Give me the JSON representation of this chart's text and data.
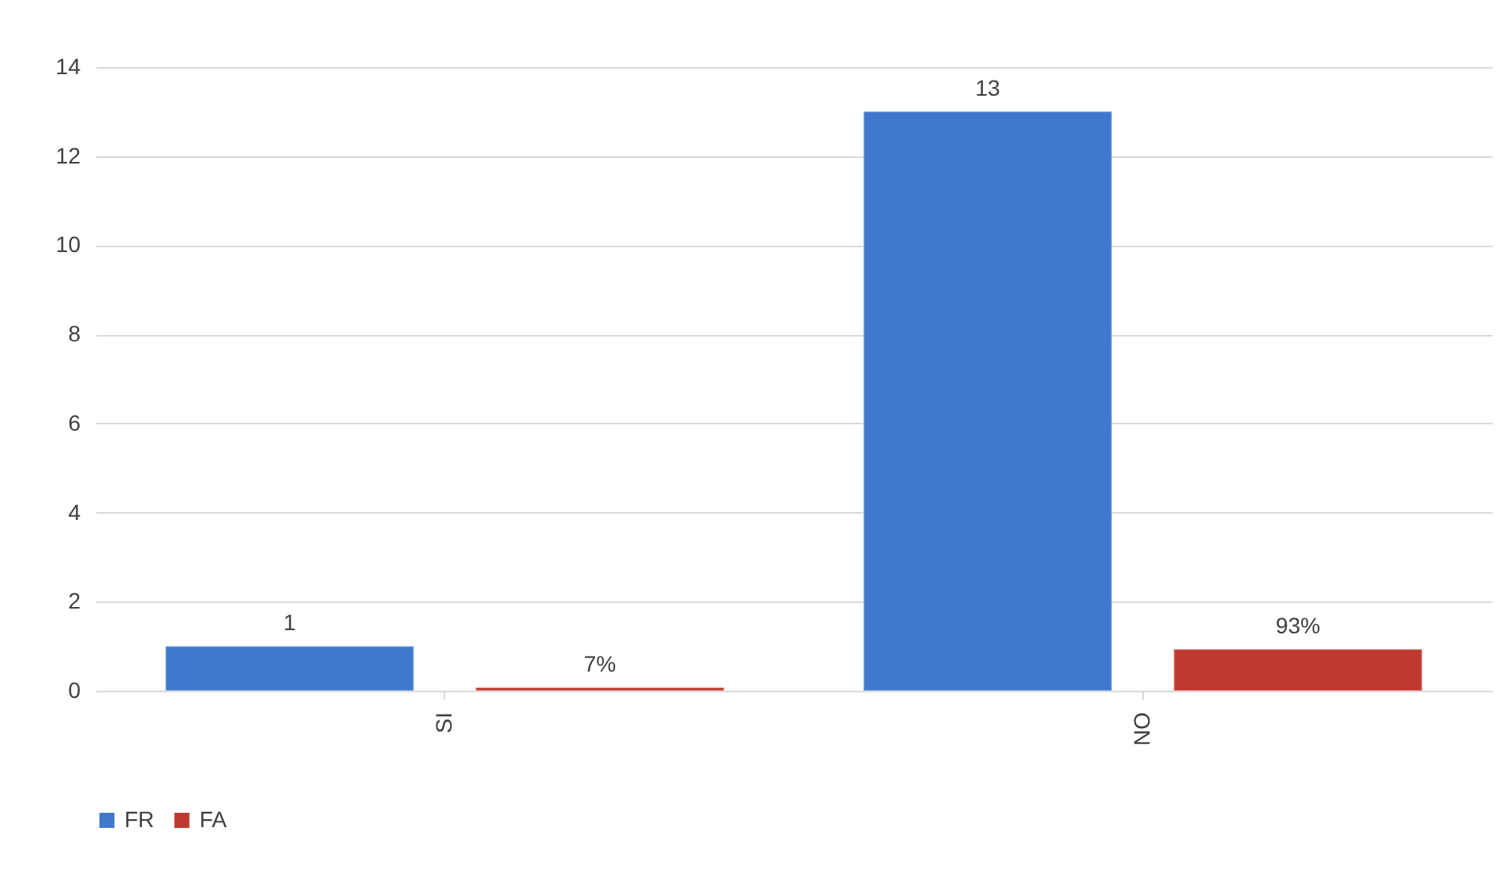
{
  "chart_data": {
    "type": "bar",
    "categories": [
      "SI",
      "NO"
    ],
    "series": [
      {
        "name": "FR",
        "color": "#3f78cc",
        "values": [
          1,
          13
        ],
        "value_labels": [
          "1",
          "13"
        ]
      },
      {
        "name": "FA",
        "color": "#c0392f",
        "values": [
          0.07,
          0.93
        ],
        "value_labels": [
          "7%",
          "93%"
        ]
      }
    ],
    "ylim": [
      0,
      14
    ],
    "yticks": [
      0,
      2,
      4,
      6,
      8,
      10,
      12,
      14
    ],
    "grid": "y",
    "legend": "bottom"
  }
}
